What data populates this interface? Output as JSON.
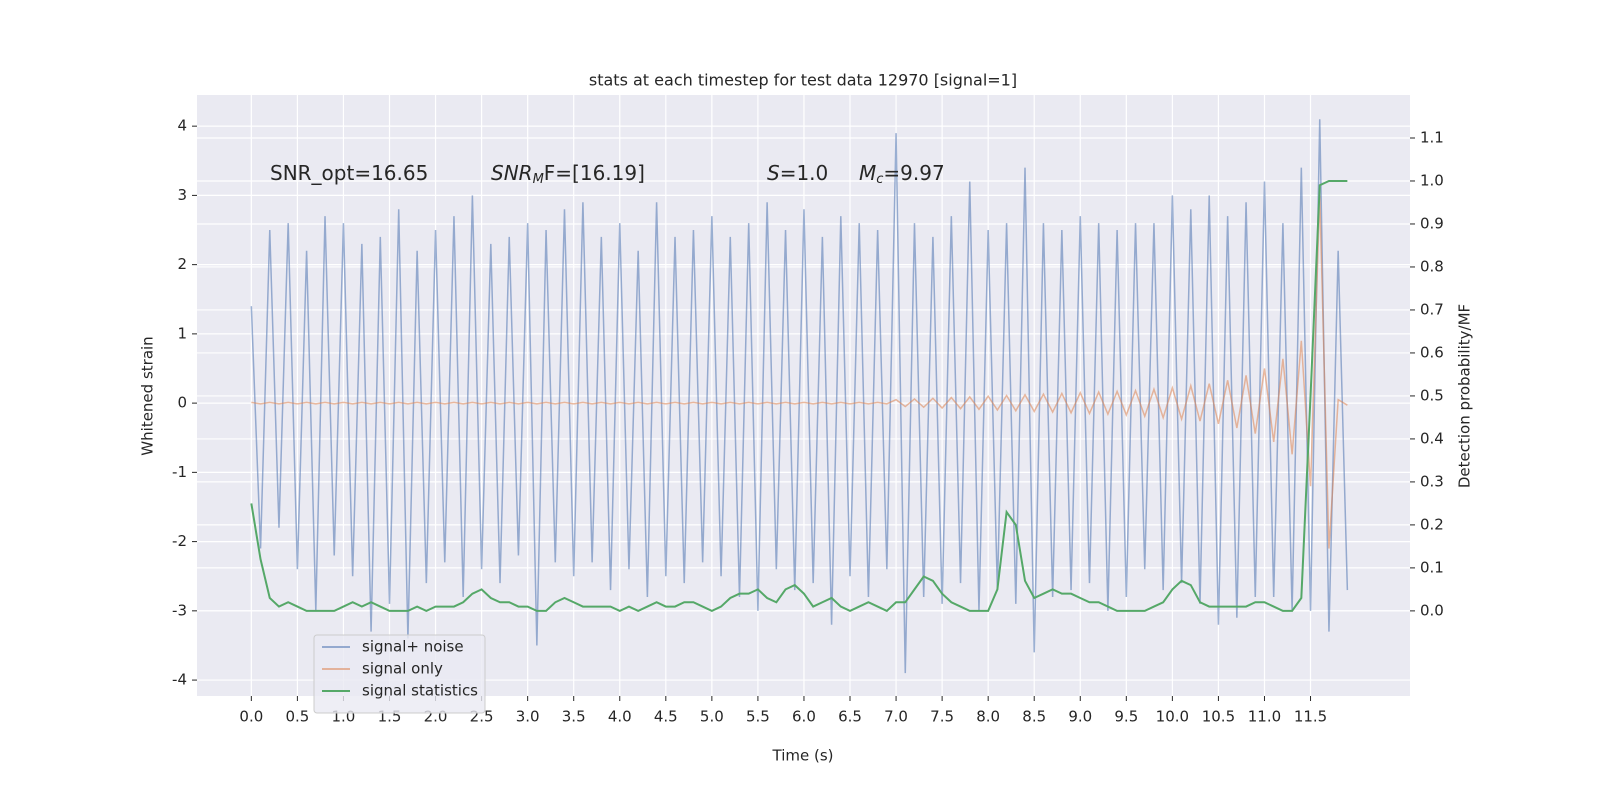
{
  "chart_data": {
    "type": "line",
    "title": "stats at each timestep for test data 12970 [signal=1]",
    "xlabel": "Time (s)",
    "ylabel": "Whitened strain",
    "y2label": "Detection probability/MF",
    "annotations": [
      {
        "text": "SNR_opt=16.65"
      },
      {
        "italic": "SNR",
        "sub": "M",
        "text": "F=[16.19]"
      },
      {
        "italic": "S",
        "text": "=1.0"
      },
      {
        "italic": "M",
        "sub": "c",
        "text": "=9.97"
      }
    ],
    "grid": true,
    "legend": "lower left",
    "xlim": [
      -0.59,
      12.58
    ],
    "ylim": [
      -4.23,
      4.45
    ],
    "y2lim": [
      -0.198,
      1.2
    ],
    "xticks": [
      {
        "value": 0,
        "label": "0.0"
      },
      {
        "value": 0.5,
        "label": "0.5"
      },
      {
        "value": 1,
        "label": "1.0"
      },
      {
        "value": 1.5,
        "label": "1.5"
      },
      {
        "value": 2,
        "label": "2.0"
      },
      {
        "value": 2.5,
        "label": "2.5"
      },
      {
        "value": 3,
        "label": "3.0"
      },
      {
        "value": 3.5,
        "label": "3.5"
      },
      {
        "value": 4,
        "label": "4.0"
      },
      {
        "value": 4.5,
        "label": "4.5"
      },
      {
        "value": 5,
        "label": "5.0"
      },
      {
        "value": 5.5,
        "label": "5.5"
      },
      {
        "value": 6,
        "label": "6.0"
      },
      {
        "value": 6.5,
        "label": "6.5"
      },
      {
        "value": 7,
        "label": "7.0"
      },
      {
        "value": 7.5,
        "label": "7.5"
      },
      {
        "value": 8,
        "label": "8.0"
      },
      {
        "value": 8.5,
        "label": "8.5"
      },
      {
        "value": 9,
        "label": "9.0"
      },
      {
        "value": 9.5,
        "label": "9.5"
      },
      {
        "value": 10,
        "label": "10.0"
      },
      {
        "value": 10.5,
        "label": "10.5"
      },
      {
        "value": 11,
        "label": "11.0"
      },
      {
        "value": 11.5,
        "label": "11.5"
      }
    ],
    "yticks": [
      -4,
      -3,
      -2,
      -1,
      0,
      1,
      2,
      3,
      4
    ],
    "y2ticks": [
      {
        "value": 0,
        "label": "0.0"
      },
      {
        "value": 0.1,
        "label": "0.1"
      },
      {
        "value": 0.2,
        "label": "0.2"
      },
      {
        "value": 0.3,
        "label": "0.3"
      },
      {
        "value": 0.4,
        "label": "0.4"
      },
      {
        "value": 0.5,
        "label": "0.5"
      },
      {
        "value": 0.6,
        "label": "0.6"
      },
      {
        "value": 0.7,
        "label": "0.7"
      },
      {
        "value": 0.8,
        "label": "0.8"
      },
      {
        "value": 0.9,
        "label": "0.9"
      },
      {
        "value": 1.0,
        "label": "1.0"
      },
      {
        "value": 1.1,
        "label": "1.1"
      }
    ],
    "x": [
      0,
      0.1,
      0.2,
      0.3,
      0.4,
      0.5,
      0.6,
      0.7,
      0.8,
      0.9,
      1,
      1.1,
      1.2,
      1.3,
      1.4,
      1.5,
      1.6,
      1.7,
      1.8,
      1.9,
      2,
      2.1,
      2.2,
      2.3,
      2.4,
      2.5,
      2.6,
      2.7,
      2.8,
      2.9,
      3,
      3.1,
      3.2,
      3.3,
      3.4,
      3.5,
      3.6,
      3.7,
      3.8,
      3.9,
      4,
      4.1,
      4.2,
      4.3,
      4.4,
      4.5,
      4.6,
      4.7,
      4.8,
      4.9,
      5,
      5.1,
      5.2,
      5.3,
      5.4,
      5.5,
      5.6,
      5.7,
      5.8,
      5.9,
      6,
      6.1,
      6.2,
      6.3,
      6.4,
      6.5,
      6.6,
      6.7,
      6.8,
      6.9,
      7,
      7.1,
      7.2,
      7.3,
      7.4,
      7.5,
      7.6,
      7.7,
      7.8,
      7.9,
      8,
      8.1,
      8.2,
      8.3,
      8.4,
      8.5,
      8.6,
      8.7,
      8.8,
      8.9,
      9,
      9.1,
      9.2,
      9.3,
      9.4,
      9.5,
      9.6,
      9.7,
      9.8,
      9.9,
      10,
      10.1,
      10.2,
      10.3,
      10.4,
      10.5,
      10.6,
      10.7,
      10.8,
      10.9,
      11,
      11.1,
      11.2,
      11.3,
      11.4,
      11.5,
      11.6,
      11.7,
      11.8,
      11.9
    ],
    "series": [
      {
        "name": "signal+ noise",
        "color": "#4c72b0",
        "values": [
          1.4,
          -2.1,
          2.5,
          -1.8,
          2.6,
          -2.4,
          2.2,
          -3.0,
          2.7,
          -2.2,
          2.6,
          -2.5,
          2.3,
          -3.3,
          2.4,
          -2.9,
          2.8,
          -3.4,
          2.2,
          -2.6,
          2.5,
          -2.3,
          2.7,
          -2.8,
          3.0,
          -2.4,
          2.3,
          -2.6,
          2.4,
          -2.2,
          2.6,
          -3.5,
          2.5,
          -2.3,
          2.8,
          -2.5,
          2.9,
          -2.3,
          2.4,
          -2.7,
          2.6,
          -2.4,
          2.2,
          -2.8,
          2.9,
          -2.5,
          2.4,
          -2.6,
          2.5,
          -2.3,
          2.7,
          -2.5,
          2.4,
          -2.8,
          2.6,
          -3.0,
          2.9,
          -2.4,
          2.5,
          -2.7,
          2.8,
          -2.6,
          2.4,
          -3.2,
          2.7,
          -2.5,
          2.6,
          -2.8,
          2.5,
          -2.4,
          3.9,
          -3.9,
          2.6,
          -2.8,
          2.4,
          -2.9,
          2.7,
          -2.6,
          3.2,
          -3.0,
          2.5,
          -2.7,
          2.6,
          -2.9,
          3.4,
          -3.6,
          2.6,
          -2.8,
          2.5,
          -2.7,
          2.7,
          -2.6,
          2.6,
          -3.0,
          2.5,
          -2.8,
          2.6,
          -2.4,
          2.6,
          -2.7,
          3.0,
          -2.6,
          2.8,
          -2.9,
          3.0,
          -3.2,
          2.7,
          -3.1,
          2.9,
          -2.8,
          3.2,
          -2.8,
          2.6,
          -3.0,
          3.4,
          -3.0,
          4.1,
          -3.3,
          2.2,
          -2.7
        ]
      },
      {
        "name": "signal only",
        "color": "#dd8452",
        "values": [
          0.01,
          -0.01,
          0.01,
          -0.01,
          0.01,
          -0.01,
          0.01,
          -0.01,
          0.01,
          -0.01,
          0.01,
          -0.01,
          0.01,
          -0.01,
          0.01,
          -0.01,
          0.01,
          -0.01,
          0.01,
          -0.01,
          0.01,
          -0.01,
          0.01,
          -0.01,
          0.01,
          -0.01,
          0.01,
          -0.01,
          0.01,
          -0.01,
          0.01,
          -0.01,
          0.01,
          -0.01,
          0.01,
          -0.01,
          0.01,
          -0.01,
          0.01,
          -0.01,
          0.01,
          -0.01,
          0.01,
          -0.01,
          0.01,
          -0.01,
          0.01,
          -0.01,
          0.01,
          -0.01,
          0.01,
          -0.01,
          0.01,
          -0.01,
          0.01,
          -0.01,
          0.01,
          -0.01,
          0.01,
          -0.01,
          0.01,
          -0.01,
          0.01,
          -0.01,
          0.01,
          -0.01,
          0.01,
          -0.01,
          0.01,
          -0.01,
          0.05,
          -0.05,
          0.06,
          -0.06,
          0.07,
          -0.07,
          0.08,
          -0.08,
          0.09,
          -0.09,
          0.1,
          -0.1,
          0.11,
          -0.11,
          0.12,
          -0.12,
          0.13,
          -0.13,
          0.14,
          -0.14,
          0.15,
          -0.15,
          0.16,
          -0.16,
          0.17,
          -0.17,
          0.18,
          -0.19,
          0.2,
          -0.21,
          0.22,
          -0.23,
          0.25,
          -0.26,
          0.28,
          -0.3,
          0.33,
          -0.36,
          0.4,
          -0.44,
          0.5,
          -0.56,
          0.64,
          -0.74,
          0.9,
          -1.2,
          3.0,
          -2.1,
          0.05,
          -0.03
        ]
      },
      {
        "name": "signal statistics",
        "color": "#55a868",
        "axis": "y2",
        "values": [
          0.25,
          0.12,
          0.03,
          0.01,
          0.02,
          0.01,
          0.0,
          0.0,
          0.0,
          0.0,
          0.01,
          0.02,
          0.01,
          0.02,
          0.01,
          0.0,
          0.0,
          0.0,
          0.01,
          0.0,
          0.01,
          0.01,
          0.01,
          0.02,
          0.04,
          0.05,
          0.03,
          0.02,
          0.02,
          0.01,
          0.01,
          0.0,
          0.0,
          0.02,
          0.03,
          0.02,
          0.01,
          0.01,
          0.01,
          0.01,
          0.0,
          0.01,
          0.0,
          0.01,
          0.02,
          0.01,
          0.01,
          0.02,
          0.02,
          0.01,
          0.0,
          0.01,
          0.03,
          0.04,
          0.04,
          0.05,
          0.03,
          0.02,
          0.05,
          0.06,
          0.04,
          0.01,
          0.02,
          0.03,
          0.01,
          0.0,
          0.01,
          0.02,
          0.01,
          0.0,
          0.02,
          0.02,
          0.05,
          0.08,
          0.07,
          0.04,
          0.02,
          0.01,
          0.0,
          0.0,
          0.0,
          0.05,
          0.23,
          0.2,
          0.07,
          0.03,
          0.04,
          0.05,
          0.04,
          0.04,
          0.03,
          0.02,
          0.02,
          0.01,
          0.0,
          0.0,
          0.0,
          0.0,
          0.01,
          0.02,
          0.05,
          0.07,
          0.06,
          0.02,
          0.01,
          0.01,
          0.01,
          0.01,
          0.01,
          0.02,
          0.02,
          0.01,
          0.0,
          0.0,
          0.03,
          0.5,
          0.99,
          1.0,
          1.0,
          1.0
        ]
      }
    ]
  }
}
